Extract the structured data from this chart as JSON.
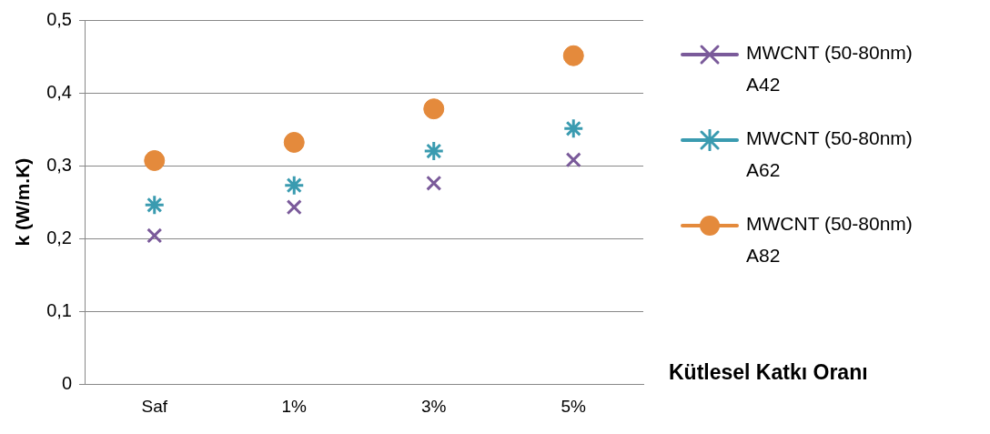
{
  "chart_data": {
    "type": "scatter",
    "xlabel": "Kütlesel Katkı Oranı",
    "ylabel": "k (W/m.K)",
    "categories": [
      "Saf",
      "1%",
      "3%",
      "5%"
    ],
    "series": [
      {
        "name": "MWCNT (50-80nm) A42",
        "color": "#7a5a9a",
        "marker": "cross",
        "values": [
          0.204,
          0.243,
          0.276,
          0.308
        ]
      },
      {
        "name": "MWCNT (50-80nm) A62",
        "color": "#3a9bb0",
        "values": [
          0.246,
          0.273,
          0.32,
          0.351
        ]
      },
      {
        "name": "MWCNT (50-80nm) A82",
        "color": "#e48a3c",
        "marker": "circle",
        "values": [
          0.307,
          0.332,
          0.378,
          0.451
        ]
      }
    ],
    "ylim": [
      0,
      0.5
    ],
    "yticks": [
      0,
      {
        "value": 0.1,
        "label": "0,1"
      },
      {
        "value": 0.2,
        "label": "0,2"
      },
      {
        "value": 0.3,
        "label": "0,3"
      },
      {
        "value": 0.4,
        "label": "0,4"
      },
      {
        "value": 0.5,
        "label": "0,5"
      }
    ],
    "grid": "y",
    "legend": "right"
  }
}
